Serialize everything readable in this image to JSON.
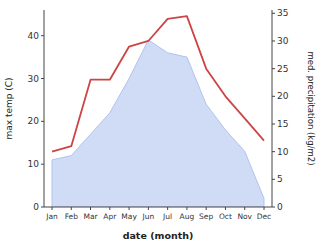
{
  "chart_data": {
    "type": "area",
    "xlabel": "date (month)",
    "ylabel": "max temp (C)",
    "y2label": "med. precipitation (kg/m2)",
    "categories": [
      "Jan",
      "Feb",
      "Mar",
      "Apr",
      "May",
      "Jun",
      "Jul",
      "Aug",
      "Sep",
      "Oct",
      "Nov",
      "Dec"
    ],
    "series": [
      {
        "type": "area",
        "color": "#b0c4ef",
        "values": [
          11,
          12,
          17,
          22,
          30,
          39,
          36,
          35,
          24,
          18,
          13,
          2
        ]
      },
      {
        "type": "line",
        "color": "#cc4444",
        "axis": "y2",
        "values": [
          10,
          11,
          23,
          23,
          29,
          30,
          34,
          34.5,
          25,
          20,
          16,
          12
        ]
      }
    ],
    "ylim": [
      0,
      46
    ],
    "yticks": [
      0,
      10,
      20,
      30,
      40
    ],
    "y2lim": [
      0,
      35.6
    ],
    "y2ticks": [
      0,
      5,
      10,
      15,
      20,
      25,
      30,
      35
    ],
    "grid": false
  }
}
